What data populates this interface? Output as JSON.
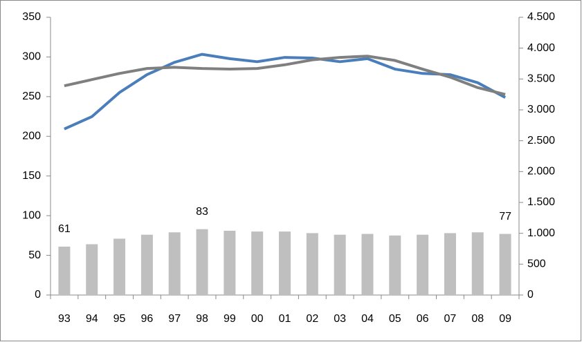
{
  "chart_data": {
    "type": "bar",
    "categories": [
      "93",
      "94",
      "95",
      "96",
      "97",
      "98",
      "99",
      "00",
      "01",
      "02",
      "03",
      "04",
      "05",
      "06",
      "07",
      "08",
      "09"
    ],
    "series": [
      {
        "type": "bar",
        "color": "#bfbfbf",
        "values": [
          61,
          64,
          71,
          76,
          79,
          83,
          81,
          80,
          80,
          78,
          76,
          77,
          75,
          76,
          78,
          79,
          77
        ],
        "labeled": [
          0,
          5,
          16
        ]
      },
      {
        "type": "line",
        "axis": "y2",
        "color": "#4a7ebb",
        "values": [
          2690,
          2890,
          3280,
          3570,
          3770,
          3900,
          3830,
          3780,
          3850,
          3840,
          3780,
          3830,
          3660,
          3590,
          3570,
          3440,
          3200
        ]
      },
      {
        "type": "line",
        "axis": "y2",
        "color": "#7f7f7f",
        "values": [
          3390,
          3490,
          3590,
          3670,
          3690,
          3670,
          3660,
          3670,
          3730,
          3810,
          3850,
          3870,
          3800,
          3660,
          3530,
          3360,
          3250
        ]
      }
    ],
    "ylim": [
      0,
      350
    ],
    "yticks": [
      0,
      50,
      100,
      150,
      200,
      250,
      300,
      350
    ],
    "y2lim": [
      0,
      4500
    ],
    "y2ticks": [
      0,
      500,
      {
        "value": 1000,
        "label": "1.000"
      },
      {
        "value": 1500,
        "label": "1.500"
      },
      {
        "value": 2000,
        "label": "2.000"
      },
      {
        "value": 2500,
        "label": "2.500"
      },
      {
        "value": 3000,
        "label": "3.000"
      },
      {
        "value": 3500,
        "label": "3.500"
      },
      {
        "value": 4000,
        "label": "4.000"
      },
      {
        "value": 4500,
        "label": "4.500"
      }
    ],
    "grid": false
  }
}
